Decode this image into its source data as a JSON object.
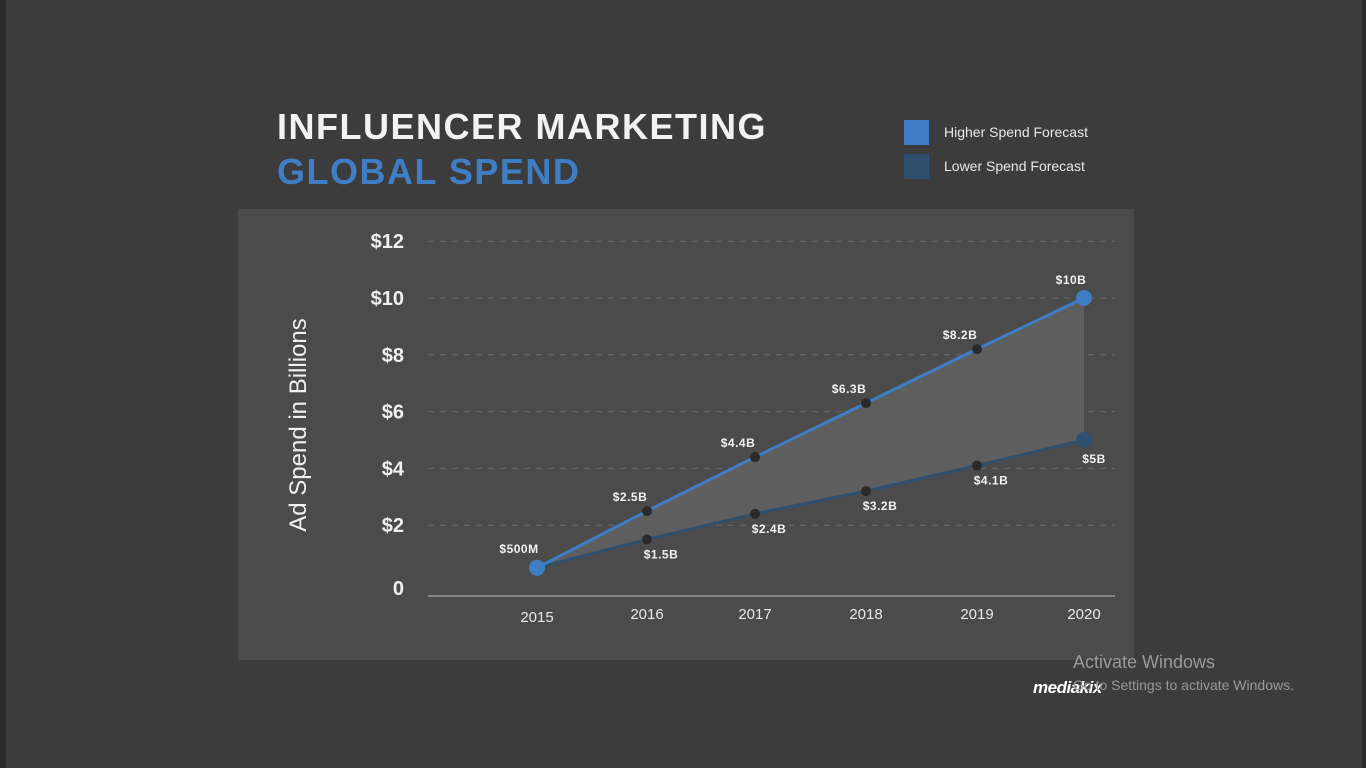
{
  "chart_data": {
    "type": "area",
    "title": "INFLUENCER MARKETING",
    "subtitle": "GLOBAL SPEND",
    "ylabel": "Ad Spend in Billions",
    "xlabel": "",
    "categories": [
      "2015",
      "2016",
      "2017",
      "2018",
      "2019",
      "2020"
    ],
    "yticks": [
      "0",
      "$2",
      "$4",
      "$6",
      "$8",
      "$10",
      "$12"
    ],
    "ylim": [
      0,
      12
    ],
    "grid": true,
    "legend_position": "top-right",
    "series": [
      {
        "name": "Higher Spend Forecast",
        "values": [
          0.5,
          2.5,
          4.4,
          6.3,
          8.2,
          10
        ],
        "labels": [
          "$500M",
          "$2.5B",
          "$4.4B",
          "$6.3B",
          "$8.2B",
          "$10B"
        ],
        "color": "#3f7ec4"
      },
      {
        "name": "Lower Spend Forecast",
        "values": [
          0.5,
          1.5,
          2.4,
          3.2,
          4.1,
          5
        ],
        "labels": [
          "",
          "$1.5B",
          "$2.4B",
          "$3.2B",
          "$4.1B",
          "$5B"
        ],
        "color": "#2f4f6e"
      }
    ]
  },
  "watermark": {
    "line1": "Activate Windows",
    "line2": "Go to Settings to activate Windows."
  },
  "brand": "mediakix",
  "colors": {
    "background": "#3c3c3c",
    "panel": "#4b4b4b",
    "band_fill": "#5e5e5e",
    "higher": "#3f7ec4",
    "lower": "#2f4f6e"
  }
}
